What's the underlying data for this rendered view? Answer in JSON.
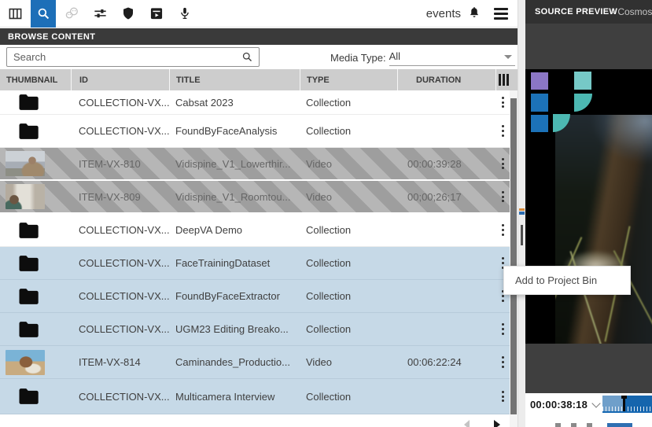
{
  "toolbar": {
    "icons": [
      "filmstrip-icon",
      "search-icon",
      "face-recognition-icon",
      "sliders-icon",
      "shield-icon",
      "archive-play-icon",
      "microphone-icon"
    ],
    "active_icon": "search-icon",
    "events_label": "events",
    "right_icons": [
      "bell-icon",
      "hamburger-menu-icon"
    ]
  },
  "browse": {
    "title": "BROWSE CONTENT"
  },
  "search": {
    "placeholder": "Search"
  },
  "filter": {
    "media_type_label": "Media Type:",
    "media_type_value": "All"
  },
  "table": {
    "columns": [
      "THUMBNAIL",
      "ID",
      "TITLE",
      "TYPE",
      "DURATION"
    ],
    "rows": [
      {
        "id": "COLLECTION-VX...",
        "title": "Cabsat 2023",
        "type": "Collection",
        "duration": "",
        "thumb": "folder",
        "state": "normal"
      },
      {
        "id": "COLLECTION-VX...",
        "title": "FoundByFaceAnalysis",
        "type": "Collection",
        "duration": "",
        "thumb": "folder",
        "state": "normal"
      },
      {
        "id": "ITEM-VX-810",
        "title": "Vidispine_V1_Lowerthir...",
        "type": "Video",
        "duration": "00:00:39:28",
        "thumb": "vt-outdoor",
        "state": "striped"
      },
      {
        "id": "ITEM-VX-809",
        "title": "Vidispine_V1_Roomtou...",
        "type": "Video",
        "duration": "00;00;26;17",
        "thumb": "vt-indoor",
        "state": "striped"
      },
      {
        "id": "COLLECTION-VX...",
        "title": "DeepVA Demo",
        "type": "Collection",
        "duration": "",
        "thumb": "folder",
        "state": "normal"
      },
      {
        "id": "COLLECTION-VX...",
        "title": "FaceTrainingDataset",
        "type": "Collection",
        "duration": "",
        "thumb": "folder",
        "state": "selected"
      },
      {
        "id": "COLLECTION-VX...",
        "title": "FoundByFaceExtractor",
        "type": "Collection",
        "duration": "",
        "thumb": "folder",
        "state": "selected"
      },
      {
        "id": "COLLECTION-VX...",
        "title": "UGM23 Editing Breako...",
        "type": "Collection",
        "duration": "",
        "thumb": "folder",
        "state": "selected"
      },
      {
        "id": "ITEM-VX-814",
        "title": "Caminandes_Productio...",
        "type": "Video",
        "duration": "00:06:22:24",
        "thumb": "vt-llama",
        "state": "selected"
      },
      {
        "id": "COLLECTION-VX...",
        "title": "Multicamera Interview",
        "type": "Collection",
        "duration": "",
        "thumb": "folder",
        "state": "selected"
      }
    ]
  },
  "tooltip": {
    "label": "Add to Project Bin"
  },
  "source_preview": {
    "title": "SOURCE PREVIEW",
    "subtitle": "- Cosmos"
  },
  "transport": {
    "timecode": "00:00:38:18"
  },
  "colors": {
    "accent_blue": "#1d6fb8",
    "selection_blue": "#c6d9e7",
    "header_gray": "#cdcdcd",
    "dark_bar": "#3a3a3a",
    "logo_purple": "#8b76c5",
    "logo_teal": "#4cb8b2",
    "logo_teal_light": "#76c9c7",
    "logo_blue": "#1c72b8",
    "scrubber_light": "#6f9fca",
    "scrubber_dark": "#1565ad"
  }
}
